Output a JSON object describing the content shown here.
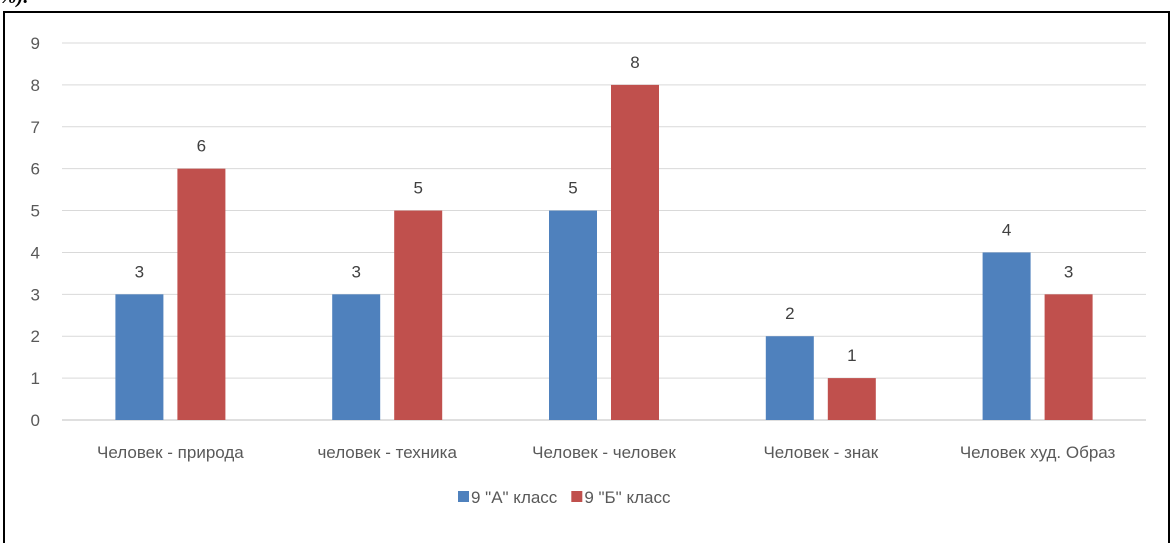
{
  "page": {
    "top_fragment": "%)."
  },
  "chart_data": {
    "type": "bar",
    "title": "",
    "xlabel": "",
    "ylabel": "",
    "ylim": [
      0,
      9
    ],
    "yticks": [
      0,
      1,
      2,
      3,
      4,
      5,
      6,
      7,
      8,
      9
    ],
    "grid": true,
    "legend_position": "bottom",
    "categories": [
      "Человек - природа",
      "человек - техника",
      "Человек - человек",
      "Человек - знак",
      "Человек худ. Образ"
    ],
    "series": [
      {
        "name": "9 \"А\" класс",
        "color": "#4f81bd",
        "values": [
          3,
          3,
          5,
          2,
          4
        ]
      },
      {
        "name": "9 \"Б\" класс",
        "color": "#c0504d",
        "values": [
          6,
          5,
          8,
          1,
          3
        ]
      }
    ]
  }
}
